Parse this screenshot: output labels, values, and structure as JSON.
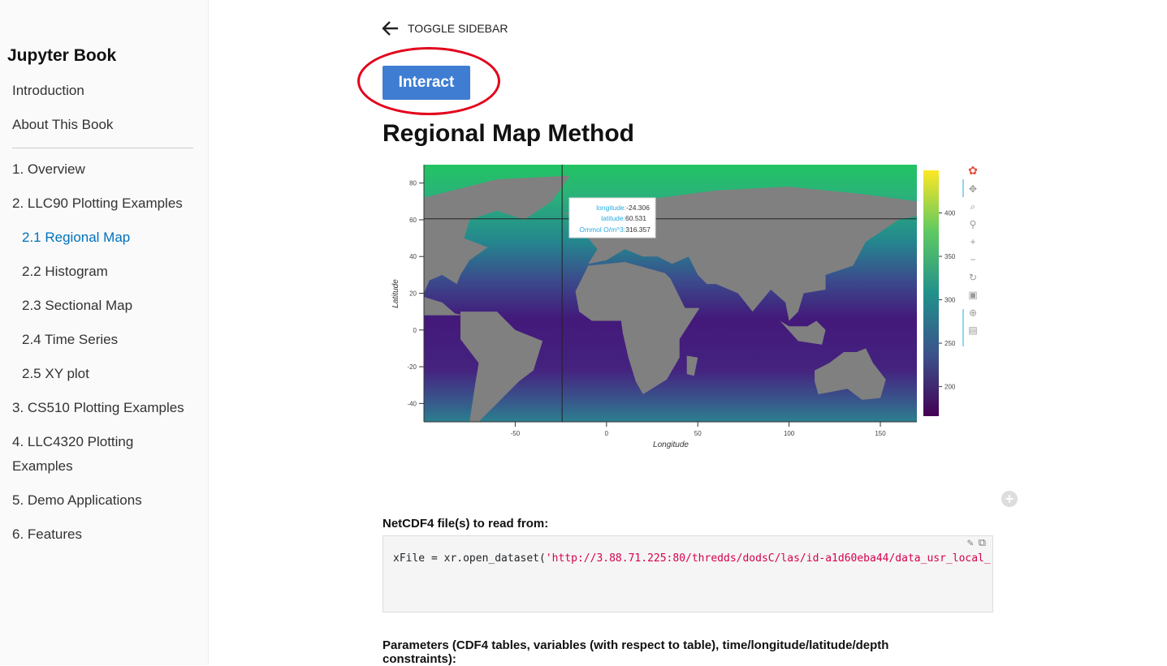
{
  "sidebar": {
    "brand": "Jupyter Book",
    "items": [
      {
        "label": "Introduction"
      },
      {
        "label": "About This Book"
      },
      {
        "label": "1. Overview"
      },
      {
        "label": "2. LLC90 Plotting Examples"
      },
      {
        "label": "2.1 Regional Map",
        "active": true
      },
      {
        "label": "2.2 Histogram"
      },
      {
        "label": "2.3 Sectional Map"
      },
      {
        "label": "2.4 Time Series"
      },
      {
        "label": "2.5 XY plot"
      },
      {
        "label": "3. CS510 Plotting Examples"
      },
      {
        "label": "4. LLC4320 Plotting"
      },
      {
        "label": "Examples"
      },
      {
        "label": "5. Demo Applications"
      },
      {
        "label": "6. Features"
      }
    ]
  },
  "header": {
    "toggle_label": "TOGGLE SIDEBAR",
    "interact_label": "Interact"
  },
  "main": {
    "title": "Regional Map Method",
    "netcdf_label": "NetCDF4 file(s) to read from:",
    "code_prefix": "xFile = xr.open_dataset(",
    "code_string": "'http://3.88.71.225:80/thredds/dodsC/las/id-a1d60eba44/data_usr_local_",
    "params_label": "Parameters (CDF4 tables, variables (with respect to table), time/longitude/latitude/depth constraints):"
  },
  "plot": {
    "xlabel": "Longitude",
    "ylabel": "Latitude",
    "xticks": [
      -50,
      0,
      50,
      100,
      150
    ],
    "yticks": [
      80,
      60,
      40,
      20,
      0,
      -20,
      -40
    ],
    "xlim": [
      -100,
      170
    ],
    "ylim": [
      -50,
      90
    ],
    "colorbar_ticks": [
      400,
      350,
      300,
      250,
      200
    ],
    "colorbar_range": [
      166,
      449
    ],
    "colormap": "viridis",
    "land_color": "#808080",
    "crosshair": {
      "lon": -24.306,
      "lat": 60.531
    },
    "tooltip": [
      {
        "key": "longitude:",
        "value": "-24.306"
      },
      {
        "key": "latitude:",
        "value": "60.531"
      },
      {
        "key": "Ommol O/m^3:",
        "value": "316.357"
      }
    ],
    "toolbar": [
      "bokeh-logo-icon",
      "pan-icon",
      "box-zoom-icon",
      "wheel-zoom-icon",
      "zoom-in-icon",
      "zoom-out-icon",
      "reset-icon",
      "save-icon",
      "crosshair-icon",
      "hover-icon"
    ]
  }
}
